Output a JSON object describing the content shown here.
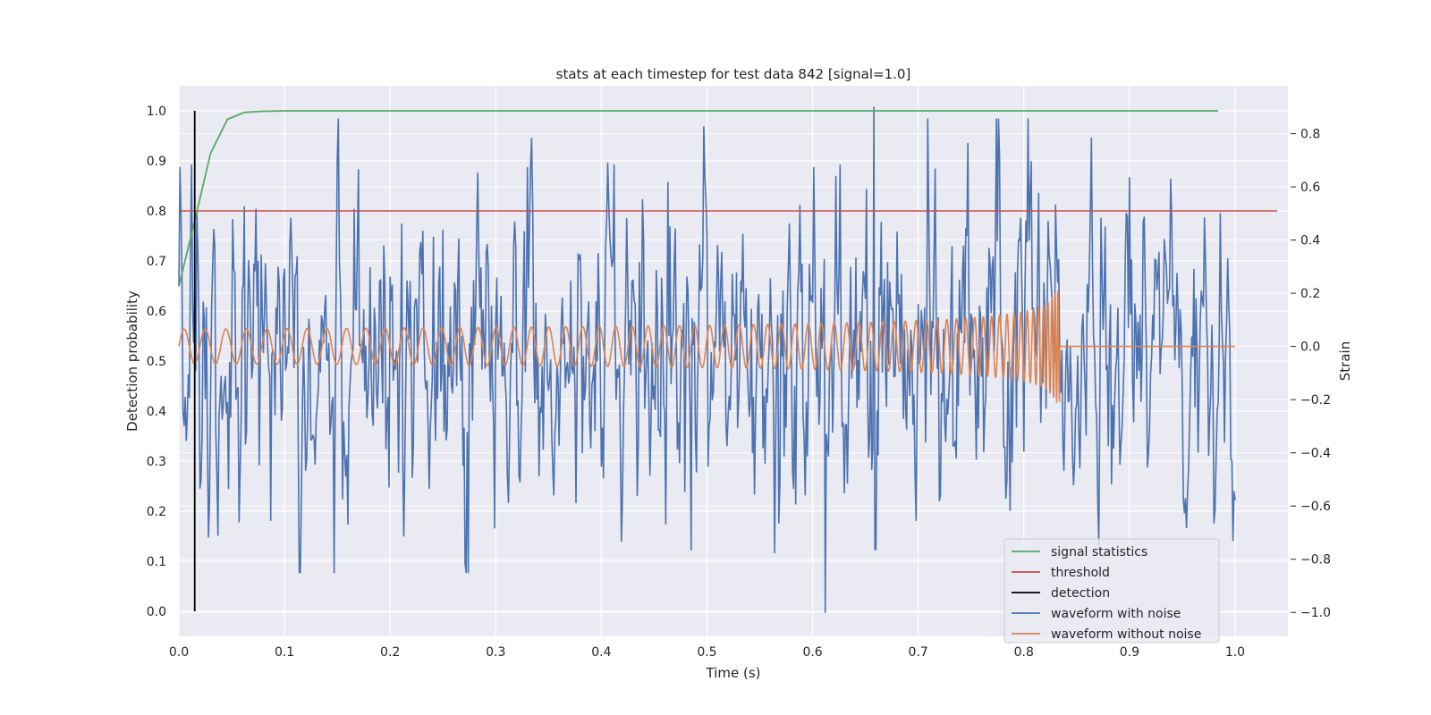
{
  "chart_data": {
    "type": "line",
    "title": "stats at each timestep for test data 842 [signal=1.0]",
    "xlabel": "Time (s)",
    "ylabel_left": "Detection probability",
    "ylabel_right": "Strain",
    "xlim": [
      0.0,
      1.05
    ],
    "ylim_left": [
      -0.05,
      1.05
    ],
    "ylim_right": [
      -1.09,
      0.98
    ],
    "x_ticks": [
      "0.0",
      "0.1",
      "0.2",
      "0.3",
      "0.4",
      "0.5",
      "0.6",
      "0.7",
      "0.8",
      "0.9",
      "1.0"
    ],
    "y_ticks_left": [
      "0.0",
      "0.1",
      "0.2",
      "0.3",
      "0.4",
      "0.5",
      "0.6",
      "0.7",
      "0.8",
      "0.9",
      "1.0"
    ],
    "y_ticks_right": [
      "−1.0",
      "−0.8",
      "−0.6",
      "−0.4",
      "−0.2",
      "0.0",
      "0.2",
      "0.4",
      "0.6",
      "0.8"
    ],
    "grid": true,
    "background": "#eaeaf2",
    "legend_position": "lower-right",
    "series": [
      {
        "name": "signal statistics",
        "axis": "left",
        "color": "#55a868",
        "x": [
          0.0,
          0.015,
          0.03,
          0.046,
          0.062,
          0.078,
          0.1,
          0.2,
          0.3,
          0.5,
          0.7,
          0.9,
          0.984
        ],
        "y": [
          0.65,
          0.78,
          0.915,
          0.983,
          0.997,
          0.999,
          1.0,
          1.0,
          1.0,
          1.0,
          1.0,
          1.0,
          1.0
        ]
      },
      {
        "name": "threshold",
        "axis": "left",
        "color": "#c44e52",
        "x": [
          0.0,
          1.04
        ],
        "y": [
          0.8,
          0.8
        ]
      },
      {
        "name": "detection",
        "axis": "left",
        "color": "#000000",
        "x": [
          0.015,
          0.015
        ],
        "y": [
          0.0,
          1.0
        ]
      },
      {
        "name": "waveform with noise",
        "axis": "right",
        "color": "#4c72b0",
        "description": "noisy strain, roughly 1000 samples over 0–1 s, values spanning about -1.0 to 0.9",
        "x_range": [
          0.0,
          1.0
        ],
        "y_range": [
          -1.0,
          0.9
        ],
        "peaks": [
          {
            "x": 0.658,
            "y": 0.9
          },
          {
            "x": 0.612,
            "y": -1.0
          }
        ]
      },
      {
        "name": "waveform without noise",
        "axis": "right",
        "color": "#dd8452",
        "description": "chirp signal: amplitude ~0.07 rising to ~0.22 near 0.83 s, then flat 0 until 1.0 s",
        "x_range": [
          0.0,
          1.0
        ],
        "y_range": [
          -0.27,
          0.22
        ],
        "merger_time": 0.834
      }
    ]
  },
  "legend": {
    "items": [
      {
        "label": "signal statistics",
        "color": "#55a868"
      },
      {
        "label": "threshold",
        "color": "#c44e52"
      },
      {
        "label": "detection",
        "color": "#000000"
      },
      {
        "label": "waveform with noise",
        "color": "#4c72b0"
      },
      {
        "label": "waveform without noise",
        "color": "#dd8452"
      }
    ]
  }
}
